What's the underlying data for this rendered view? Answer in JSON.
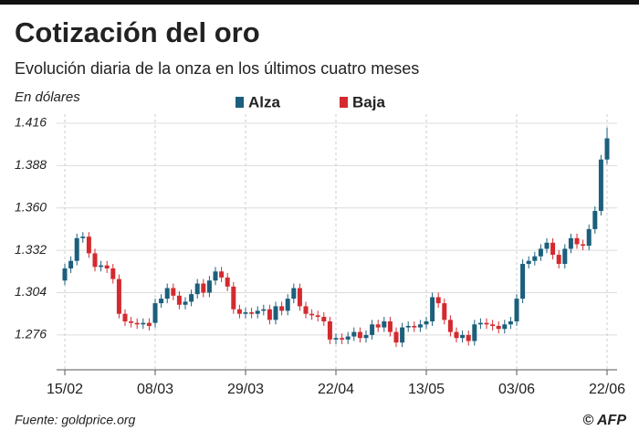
{
  "chart_data": {
    "type": "candlestick",
    "title": "Cotización del oro",
    "subtitle": "Evolución diaria de la onza en los últimos cuatro meses",
    "y_label": "En dólares",
    "source": "Fuente: goldprice.org",
    "credit": "© AFP",
    "legend": [
      {
        "name": "Alza",
        "color": "#1b5f7c"
      },
      {
        "name": "Baja",
        "color": "#d42a2f"
      }
    ],
    "categories": [
      "15/02",
      null,
      null,
      null,
      null,
      null,
      null,
      null,
      null,
      null,
      null,
      null,
      null,
      null,
      null,
      "08/03",
      null,
      null,
      null,
      null,
      null,
      null,
      null,
      null,
      null,
      null,
      null,
      null,
      null,
      null,
      "29/03",
      null,
      null,
      null,
      null,
      null,
      null,
      null,
      null,
      null,
      null,
      null,
      null,
      null,
      null,
      "22/04",
      null,
      null,
      null,
      null,
      null,
      null,
      null,
      null,
      null,
      null,
      null,
      null,
      null,
      null,
      "13/05",
      null,
      null,
      null,
      null,
      null,
      null,
      null,
      null,
      null,
      null,
      null,
      null,
      null,
      null,
      "03/06",
      null,
      null,
      null,
      null,
      null,
      null,
      null,
      null,
      null,
      null,
      null,
      null,
      null,
      null,
      "22/06"
    ],
    "open": [
      1312,
      1320,
      1325,
      1340,
      1341,
      1330,
      1321,
      1322,
      1320,
      1313,
      1290,
      1285,
      1284,
      1283,
      1284,
      1284,
      1297,
      1300,
      1307,
      1302,
      1296,
      1298,
      1303,
      1310,
      1304,
      1312,
      1318,
      1314,
      1308,
      1293,
      1290,
      1291,
      1290,
      1292,
      1293,
      1286,
      1295,
      1292,
      1300,
      1307,
      1295,
      1290,
      1289,
      1288,
      1285,
      1273,
      1274,
      1273,
      1275,
      1278,
      1274,
      1276,
      1283,
      1281,
      1285,
      1278,
      1271,
      1281,
      1282,
      1281,
      1283,
      1285,
      1301,
      1297,
      1286,
      1278,
      1274,
      1276,
      1272,
      1283,
      1284,
      1283,
      1282,
      1280,
      1283,
      1285,
      1300,
      1323,
      1325,
      1328,
      1333,
      1337,
      1329,
      1323,
      1333,
      1340,
      1336,
      1335,
      1346,
      1358,
      1392
    ],
    "high": [
      1323,
      1328,
      1343,
      1344,
      1344,
      1333,
      1325,
      1325,
      1323,
      1316,
      1293,
      1288,
      1287,
      1287,
      1287,
      1300,
      1303,
      1310,
      1310,
      1305,
      1301,
      1306,
      1313,
      1313,
      1315,
      1321,
      1321,
      1317,
      1311,
      1296,
      1294,
      1294,
      1295,
      1296,
      1296,
      1298,
      1298,
      1303,
      1310,
      1310,
      1298,
      1293,
      1292,
      1291,
      1288,
      1277,
      1277,
      1278,
      1281,
      1281,
      1279,
      1286,
      1286,
      1288,
      1288,
      1281,
      1284,
      1285,
      1285,
      1286,
      1288,
      1304,
      1304,
      1300,
      1289,
      1281,
      1279,
      1279,
      1286,
      1287,
      1287,
      1286,
      1285,
      1286,
      1288,
      1303,
      1326,
      1328,
      1331,
      1336,
      1340,
      1340,
      1332,
      1336,
      1343,
      1343,
      1339,
      1349,
      1361,
      1395,
      1413
    ],
    "low": [
      1309,
      1317,
      1322,
      1337,
      1327,
      1318,
      1318,
      1317,
      1310,
      1287,
      1282,
      1281,
      1280,
      1280,
      1279,
      1281,
      1294,
      1297,
      1299,
      1293,
      1293,
      1295,
      1300,
      1301,
      1301,
      1309,
      1311,
      1305,
      1290,
      1287,
      1287,
      1287,
      1287,
      1289,
      1283,
      1283,
      1289,
      1289,
      1297,
      1292,
      1287,
      1286,
      1285,
      1282,
      1270,
      1270,
      1270,
      1270,
      1272,
      1271,
      1271,
      1273,
      1278,
      1278,
      1275,
      1268,
      1268,
      1278,
      1278,
      1278,
      1280,
      1282,
      1294,
      1283,
      1275,
      1271,
      1271,
      1269,
      1269,
      1280,
      1280,
      1279,
      1277,
      1277,
      1280,
      1282,
      1297,
      1320,
      1322,
      1325,
      1330,
      1326,
      1320,
      1320,
      1330,
      1333,
      1332,
      1332,
      1343,
      1355,
      1389
    ],
    "close": [
      1320,
      1325,
      1340,
      1341,
      1330,
      1321,
      1322,
      1320,
      1313,
      1290,
      1285,
      1284,
      1283,
      1284,
      1282,
      1297,
      1300,
      1307,
      1302,
      1296,
      1298,
      1303,
      1310,
      1304,
      1312,
      1318,
      1314,
      1308,
      1293,
      1290,
      1291,
      1290,
      1292,
      1293,
      1286,
      1295,
      1292,
      1300,
      1307,
      1295,
      1290,
      1289,
      1288,
      1285,
      1273,
      1274,
      1273,
      1275,
      1278,
      1274,
      1276,
      1283,
      1281,
      1285,
      1278,
      1271,
      1281,
      1282,
      1281,
      1283,
      1285,
      1301,
      1297,
      1286,
      1278,
      1274,
      1276,
      1272,
      1283,
      1284,
      1283,
      1282,
      1280,
      1283,
      1285,
      1300,
      1323,
      1325,
      1328,
      1333,
      1337,
      1329,
      1323,
      1333,
      1340,
      1336,
      1335,
      1346,
      1358,
      1392,
      1406
    ],
    "ylim": [
      1253,
      1422
    ],
    "yticks": [
      {
        "value": 1276,
        "label": "1.276"
      },
      {
        "value": 1304,
        "label": "1.304"
      },
      {
        "value": 1332,
        "label": "1.332"
      },
      {
        "value": 1360,
        "label": "1.360"
      },
      {
        "value": 1388,
        "label": "1.388"
      },
      {
        "value": 1416,
        "label": "1.416"
      }
    ],
    "grid": true
  }
}
